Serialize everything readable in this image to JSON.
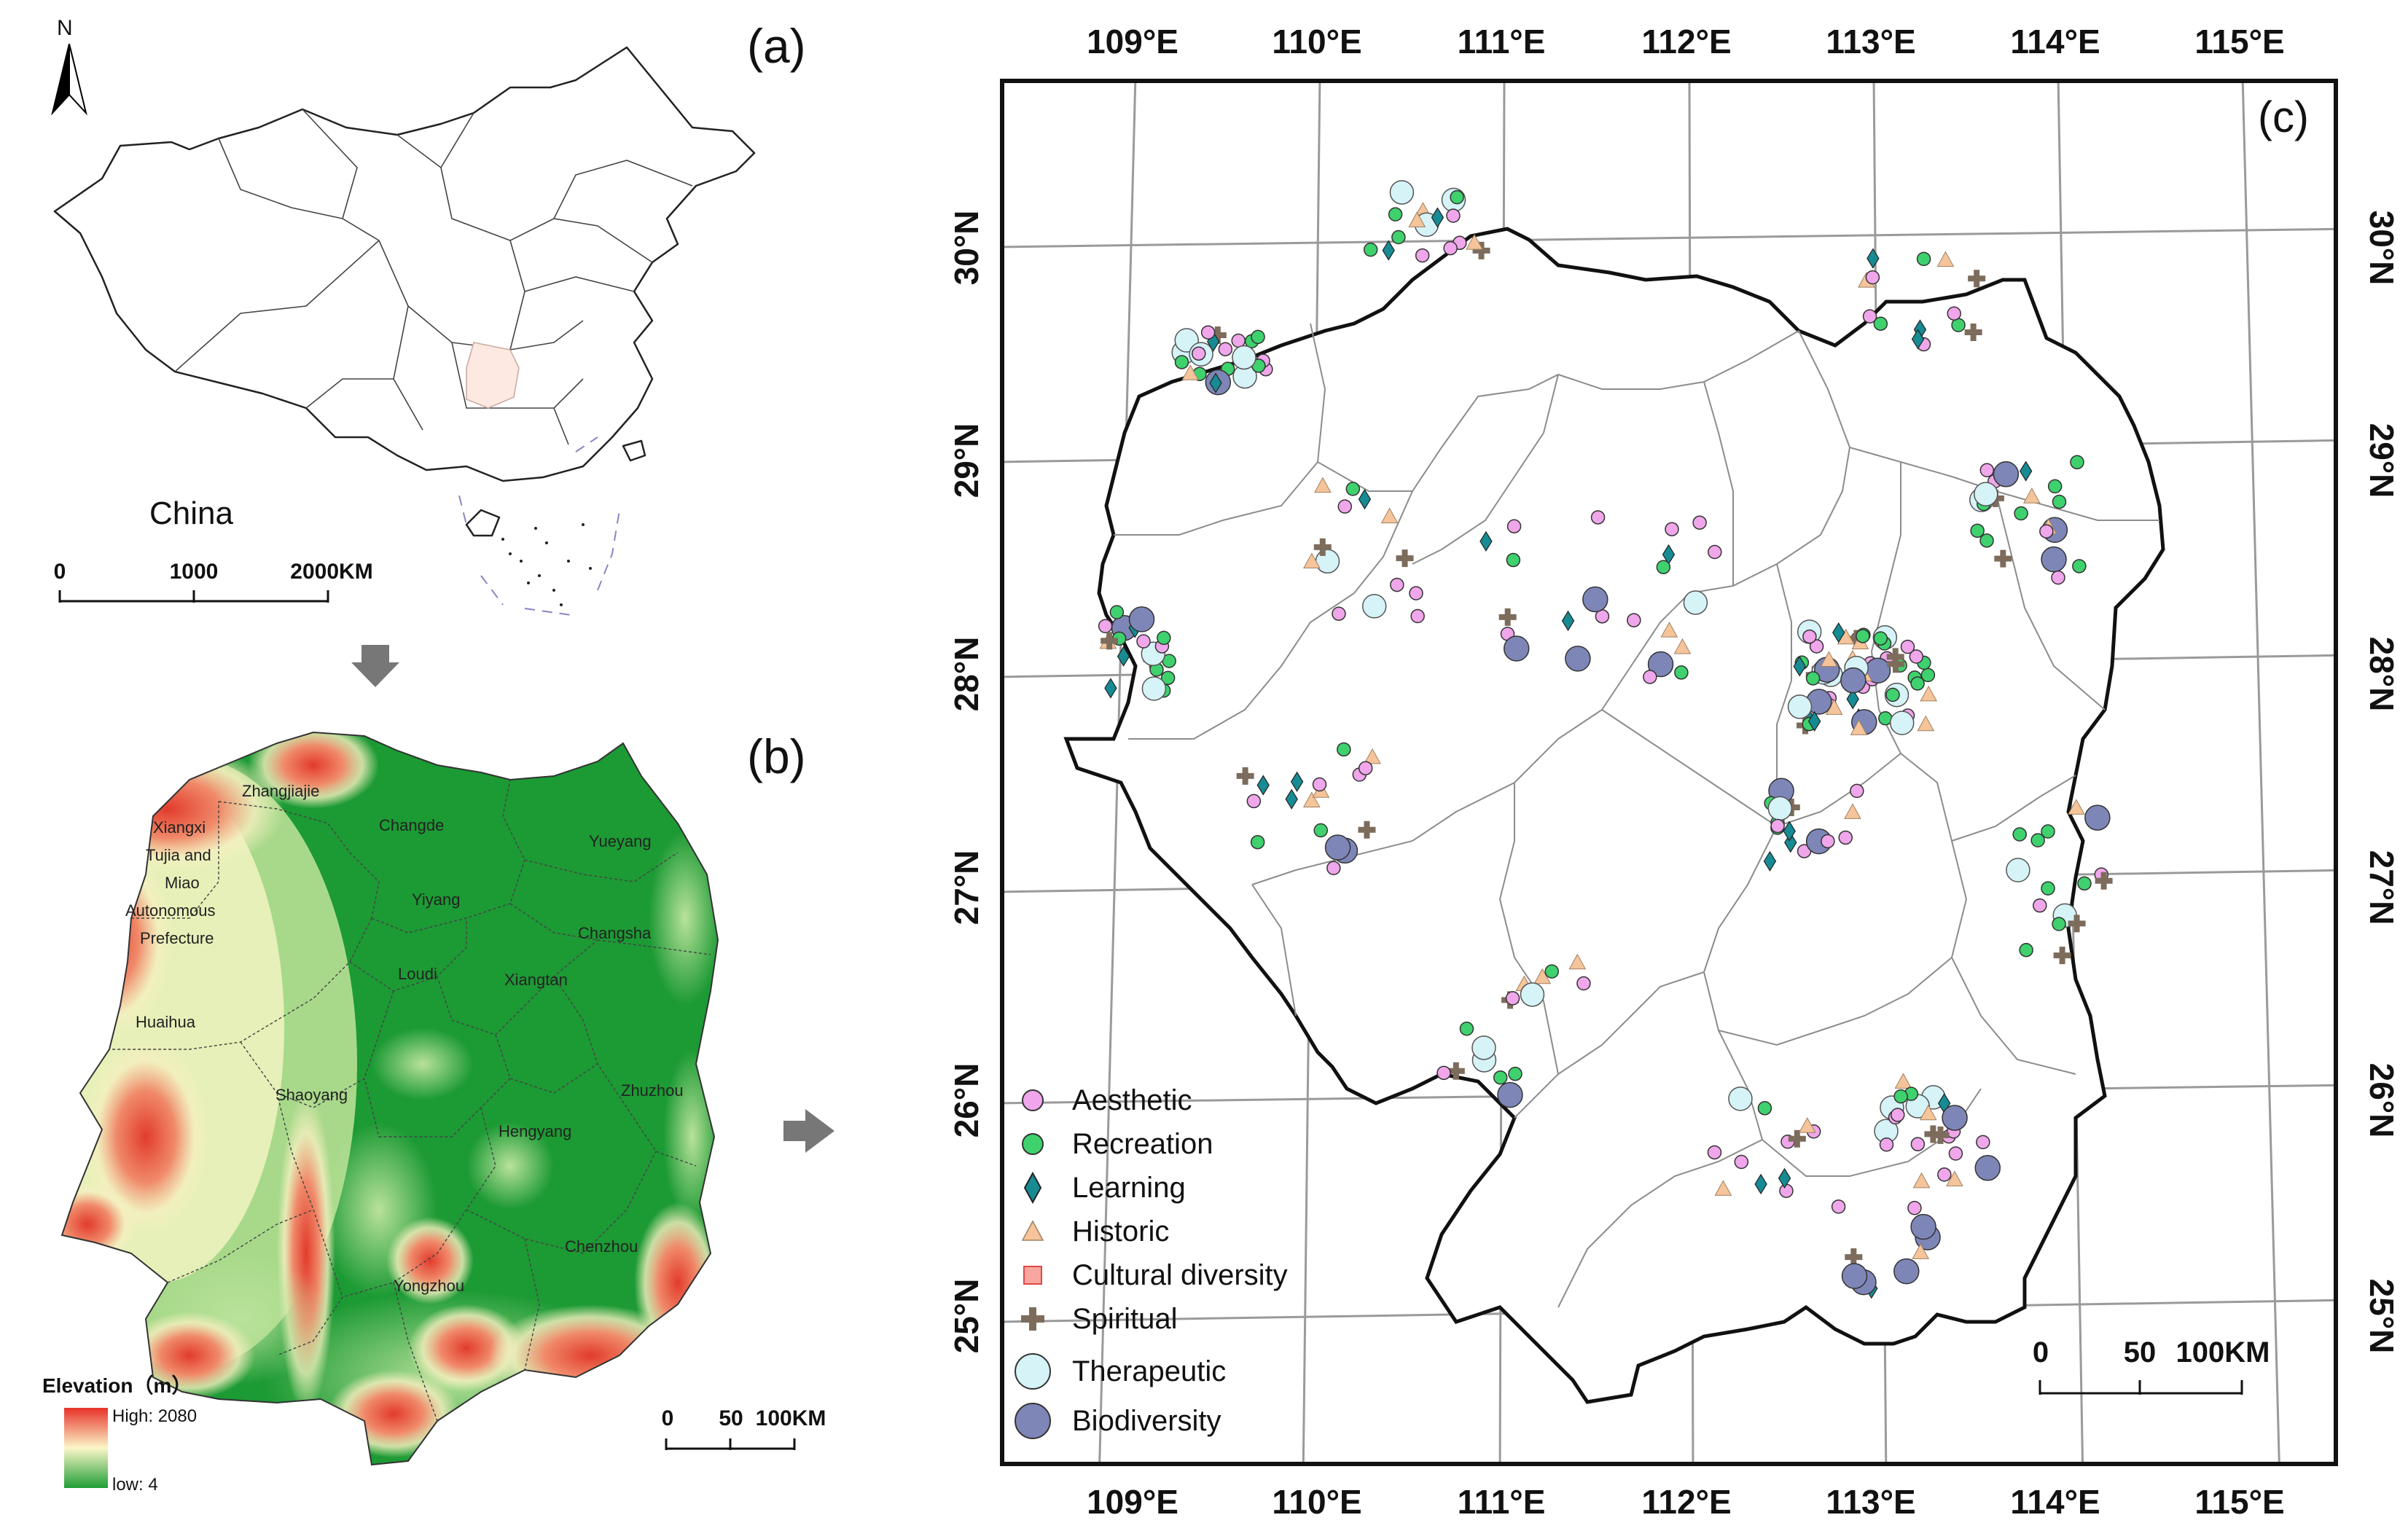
{
  "panels": {
    "a": {
      "letter": "(a)",
      "north_label": "N",
      "country_label": "China",
      "scale": {
        "ticks": [
          "0",
          "1000",
          "2000KM"
        ]
      }
    },
    "b": {
      "letter": "(b)",
      "regions": [
        "Zhangjiajie",
        "Xiangxi",
        "Tujia and",
        "Miao",
        "Autonomous",
        "Prefecture",
        "Changde",
        "Yueyang",
        "Yiyang",
        "Changsha",
        "Loudi",
        "Xiangtan",
        "Huaihua",
        "Shaoyang",
        "Hengyang",
        "Zhuzhou",
        "Yongzhou",
        "Chenzhou"
      ],
      "legend": {
        "title": "Elevation（m）",
        "high": "High: 2080",
        "low": "low: 4",
        "colors": {
          "high": "#e8322a",
          "mid": "#fbf6c8",
          "low": "#1f9e35"
        }
      },
      "scale": {
        "ticks": [
          "0",
          "50",
          "100KM"
        ]
      }
    },
    "c": {
      "letter": "(c)",
      "lon_labels": [
        "109°E",
        "110°E",
        "111°E",
        "112°E",
        "113°E",
        "114°E",
        "115°E"
      ],
      "lat_labels": [
        "30°N",
        "29°N",
        "28°N",
        "27°N",
        "26°N",
        "25°N"
      ],
      "scale": {
        "ticks": [
          "0",
          "50",
          "100KM"
        ]
      },
      "legend": [
        {
          "label": "Aesthetic",
          "icon": "circle",
          "color": "#f0a6ea"
        },
        {
          "label": "Recreation",
          "icon": "circle",
          "color": "#3fd16d"
        },
        {
          "label": "Learning",
          "icon": "diamond",
          "color": "#178b93"
        },
        {
          "label": "Historic",
          "icon": "triangle",
          "color": "#f5c49a"
        },
        {
          "label": "Cultural diversity",
          "icon": "square",
          "color": "#f26d6d"
        },
        {
          "label": "Spiritual",
          "icon": "cross",
          "color": "#7d6c5c"
        },
        {
          "label": "Therapeutic",
          "icon": "big-circle",
          "color": "#d6f3f7"
        },
        {
          "label": "Biodiversity",
          "icon": "big-circle",
          "color": "#7e86b8"
        }
      ]
    }
  }
}
